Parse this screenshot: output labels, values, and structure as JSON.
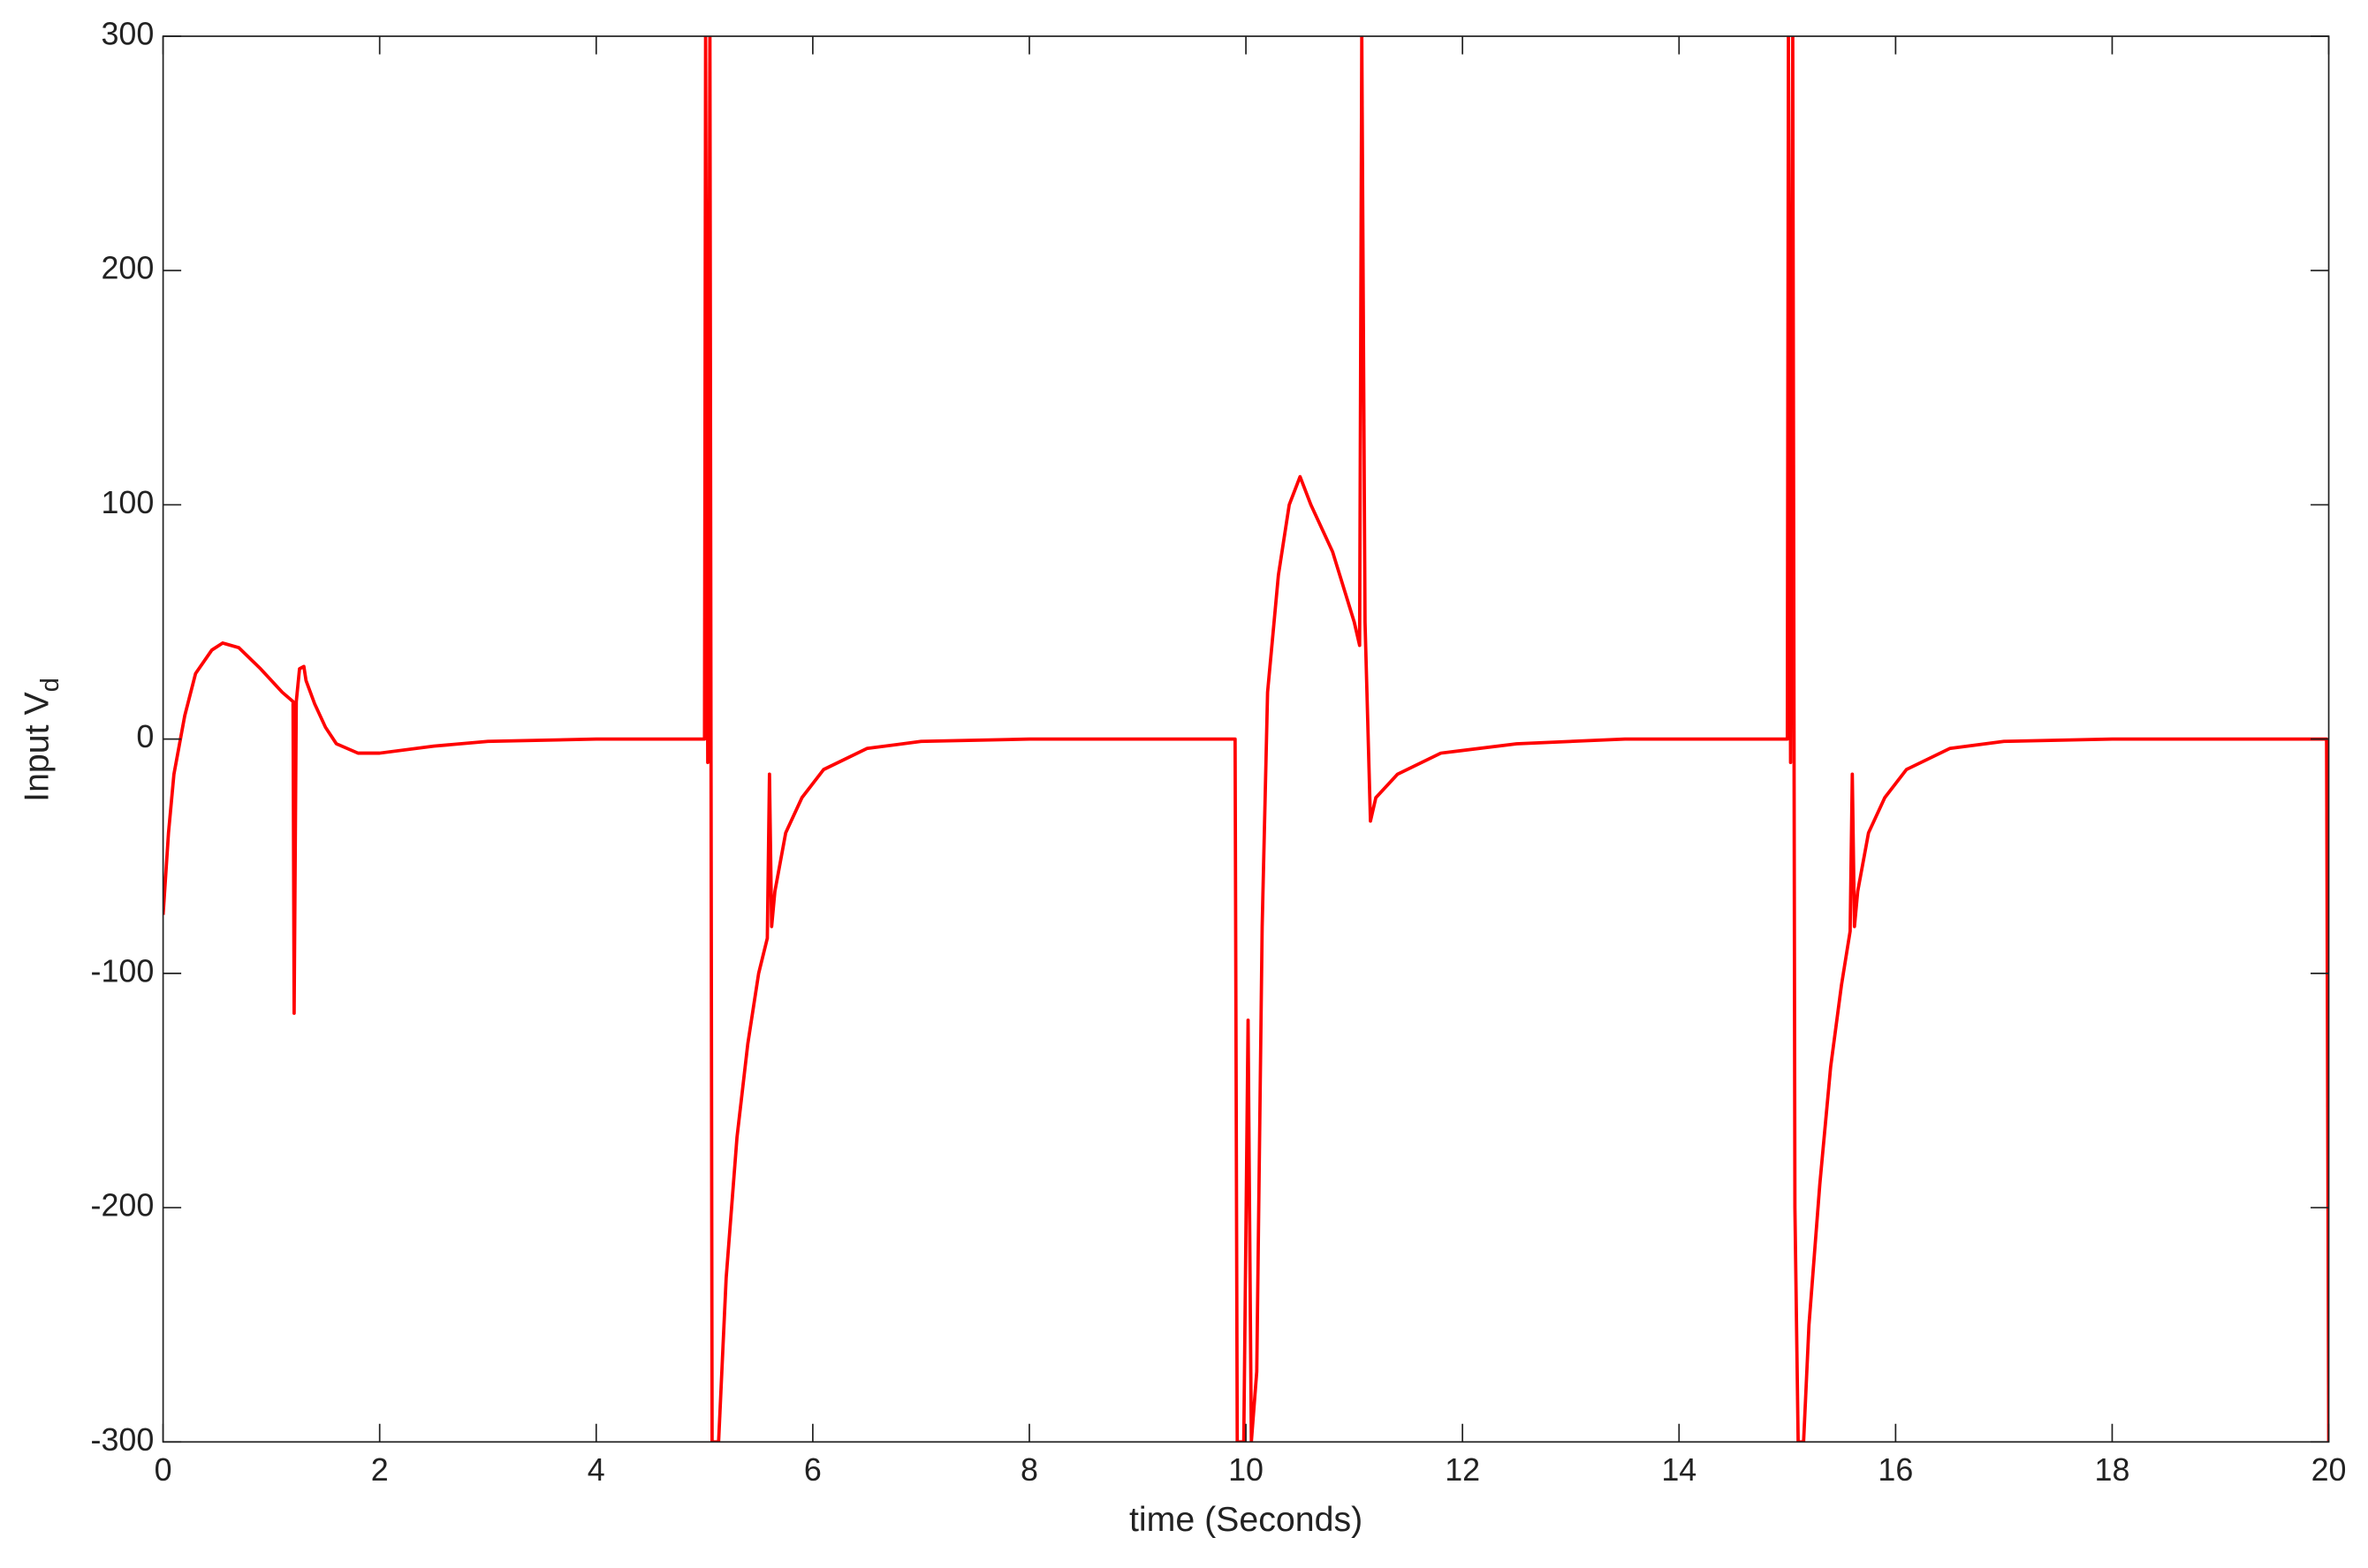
{
  "chart_data": {
    "type": "line",
    "xlabel": "time (Seconds)",
    "ylabel": "Input V",
    "ylabel_subscript": "d",
    "xlim": [
      0,
      20
    ],
    "ylim": [
      -300,
      300
    ],
    "xticks": [
      0,
      2,
      4,
      6,
      8,
      10,
      12,
      14,
      16,
      18,
      20
    ],
    "yticks": [
      -300,
      -200,
      -100,
      0,
      100,
      200,
      300
    ],
    "grid": false,
    "series": [
      {
        "color": "#ff0000",
        "x": [
          0,
          0.05,
          0.1,
          0.2,
          0.3,
          0.45,
          0.55,
          0.7,
          0.9,
          1.1,
          1.2,
          1.21,
          1.23,
          1.26,
          1.3,
          1.32,
          1.4,
          1.5,
          1.6,
          1.8,
          2.0,
          2.5,
          3.0,
          4.0,
          5.0,
          5.01,
          5.03,
          5.05,
          5.07,
          5.1,
          5.13,
          5.2,
          5.3,
          5.4,
          5.5,
          5.58,
          5.6,
          5.62,
          5.65,
          5.75,
          5.9,
          6.1,
          6.5,
          7.0,
          8.0,
          9.9,
          9.92,
          9.98,
          10.02,
          10.05,
          10.1,
          10.15,
          10.2,
          10.3,
          10.4,
          10.5,
          10.6,
          10.8,
          11.0,
          11.05,
          11.07,
          11.1,
          11.15,
          11.2,
          11.4,
          11.8,
          12.5,
          13.5,
          15.0,
          15.01,
          15.03,
          15.05,
          15.07,
          15.1,
          15.15,
          15.2,
          15.3,
          15.4,
          15.5,
          15.58,
          15.6,
          15.62,
          15.65,
          15.75,
          15.9,
          16.1,
          16.5,
          17.0,
          18.0,
          19.98,
          20.0
        ],
        "values": [
          -75,
          -40,
          -15,
          10,
          28,
          38,
          41,
          39,
          30,
          20,
          16,
          -117,
          16,
          30,
          31,
          25,
          15,
          5,
          -2,
          -6,
          -6,
          -3,
          -1,
          0,
          0,
          300,
          -10,
          300,
          -300,
          -300,
          -300,
          -230,
          -170,
          -130,
          -100,
          -85,
          -15,
          -80,
          -65,
          -40,
          -25,
          -13,
          -4,
          -1,
          0,
          0,
          -300,
          -300,
          -120,
          -300,
          -270,
          -80,
          20,
          70,
          100,
          112,
          100,
          80,
          50,
          40,
          300,
          50,
          -35,
          -25,
          -15,
          -6,
          -2,
          0,
          0,
          300,
          -10,
          300,
          -200,
          -300,
          -300,
          -250,
          -190,
          -140,
          -105,
          -82,
          -15,
          -80,
          -65,
          -40,
          -25,
          -13,
          -4,
          -1,
          0,
          0,
          -300
        ]
      }
    ]
  }
}
